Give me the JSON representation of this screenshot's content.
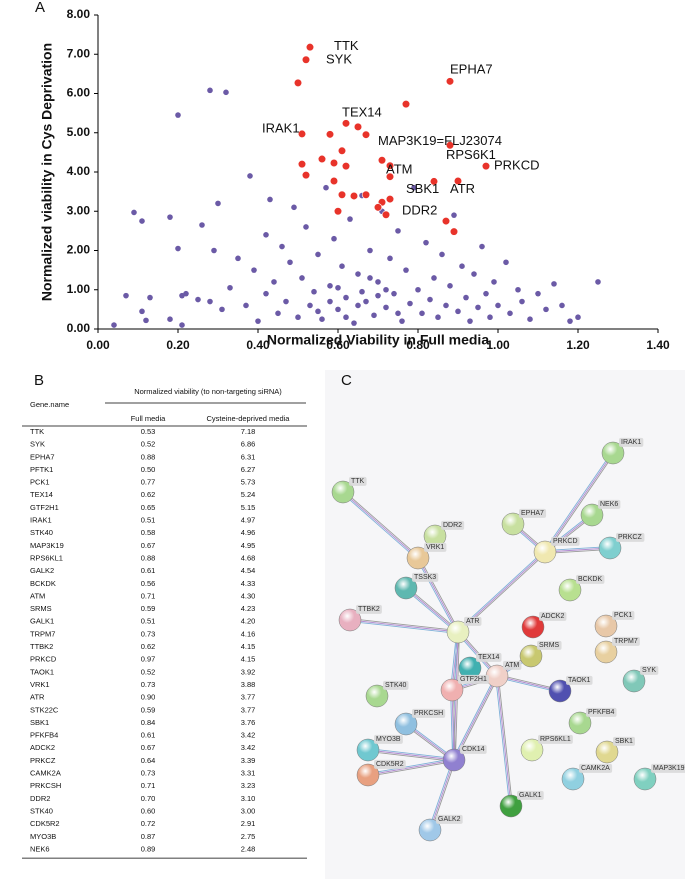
{
  "panels": [
    "A",
    "B",
    "C"
  ],
  "chart_data": {
    "type": "scatter",
    "xlabel": "Normalized Viability in Full media",
    "ylabel": "Normalized viability in Cys Deprivation",
    "xlim": [
      0,
      1.4
    ],
    "ylim": [
      0,
      8
    ],
    "xticks": [
      {
        "value": 0,
        "label": "0.00"
      },
      {
        "value": 0.2,
        "label": "0.20"
      },
      {
        "value": 0.4,
        "label": "0.40"
      },
      {
        "value": 0.6,
        "label": "0.60"
      },
      {
        "value": 0.8,
        "label": "0.80"
      },
      {
        "value": 1.0,
        "label": "1.00"
      },
      {
        "value": 1.2,
        "label": "1.20"
      },
      {
        "value": 1.4,
        "label": "1.40"
      }
    ],
    "yticks": [
      {
        "value": 0,
        "label": "0.00"
      },
      {
        "value": 1,
        "label": "1.00"
      },
      {
        "value": 2,
        "label": "2.00"
      },
      {
        "value": 3,
        "label": "3.00"
      },
      {
        "value": 4,
        "label": "4.00"
      },
      {
        "value": 5,
        "label": "5.00"
      },
      {
        "value": 6,
        "label": "6.00"
      },
      {
        "value": 7,
        "label": "7.00"
      },
      {
        "value": 8,
        "label": "8.00"
      }
    ],
    "series": [
      {
        "color": "#6b5aa6",
        "x": [
          0.28,
          0.32,
          0.2,
          0.04,
          0.07,
          0.09,
          0.11,
          0.11,
          0.12,
          0.13,
          0.18,
          0.18,
          0.2,
          0.21,
          0.21,
          0.22,
          0.25,
          0.26,
          0.28,
          0.29,
          0.3,
          0.31,
          0.33,
          0.35,
          0.37,
          0.38,
          0.39,
          0.4,
          0.42,
          0.42,
          0.43,
          0.44,
          0.45,
          0.46,
          0.47,
          0.48,
          0.49,
          0.5,
          0.51,
          0.52,
          0.53,
          0.54,
          0.55,
          0.56,
          0.57,
          0.58,
          0.59,
          0.6,
          0.61,
          0.62,
          0.63,
          0.64,
          0.65,
          0.66,
          0.67,
          0.68,
          0.69,
          0.7,
          0.71,
          0.72,
          0.73,
          0.74,
          0.75,
          0.76,
          0.77,
          0.78,
          0.79,
          0.8,
          0.81,
          0.82,
          0.83,
          0.84,
          0.85,
          0.86,
          0.87,
          0.88,
          0.89,
          0.9,
          0.91,
          0.92,
          0.93,
          0.94,
          0.95,
          0.96,
          0.97,
          0.98,
          0.99,
          1.0,
          1.02,
          1.03,
          1.05,
          1.06,
          1.08,
          1.1,
          1.12,
          1.14,
          1.16,
          1.18,
          1.2,
          1.25,
          0.55,
          0.6,
          0.65,
          0.7,
          0.75,
          0.58,
          0.68,
          0.62,
          0.72,
          0.66
        ],
        "values": [
          6.08,
          6.03,
          5.45,
          0.1,
          0.85,
          2.97,
          2.75,
          0.45,
          0.22,
          0.8,
          2.85,
          0.25,
          2.05,
          0.1,
          0.85,
          0.9,
          0.75,
          2.65,
          0.7,
          2.0,
          3.2,
          0.5,
          1.05,
          1.8,
          0.6,
          3.9,
          1.5,
          0.2,
          2.4,
          0.9,
          3.3,
          1.2,
          0.4,
          2.1,
          0.7,
          1.7,
          3.1,
          0.3,
          1.3,
          2.6,
          0.6,
          0.95,
          1.9,
          0.25,
          3.6,
          1.1,
          2.3,
          0.5,
          1.6,
          0.8,
          2.8,
          0.15,
          1.4,
          3.4,
          0.7,
          2.0,
          0.35,
          1.2,
          3.0,
          0.55,
          1.8,
          0.9,
          2.5,
          0.2,
          1.5,
          0.65,
          3.6,
          1.0,
          0.4,
          2.2,
          0.75,
          1.3,
          0.3,
          1.9,
          0.6,
          1.1,
          2.9,
          0.45,
          1.6,
          0.8,
          0.2,
          1.4,
          0.55,
          2.1,
          0.9,
          0.3,
          1.2,
          0.6,
          1.7,
          0.4,
          1.0,
          0.7,
          0.25,
          0.9,
          0.5,
          1.15,
          0.6,
          0.2,
          0.3,
          1.2,
          0.45,
          1.05,
          0.6,
          0.85,
          0.4,
          0.7,
          1.3,
          0.3,
          1.0,
          0.95
        ]
      },
      {
        "color": "#e8332a",
        "x": [
          0.53,
          0.52,
          0.88,
          0.5,
          0.77,
          0.62,
          0.65,
          0.51,
          0.58,
          0.67,
          0.88,
          0.61,
          0.56,
          0.71,
          0.59,
          0.51,
          0.73,
          0.62,
          0.97,
          0.52,
          0.73,
          0.9,
          0.59,
          0.84,
          0.61,
          0.67,
          0.64,
          0.73,
          0.71,
          0.7,
          0.6,
          0.72,
          0.87,
          0.89
        ],
        "values": [
          7.18,
          6.86,
          6.31,
          6.27,
          5.73,
          5.24,
          5.15,
          4.97,
          4.96,
          4.95,
          4.68,
          4.54,
          4.33,
          4.3,
          4.23,
          4.2,
          4.16,
          4.15,
          4.15,
          3.92,
          3.88,
          3.77,
          3.77,
          3.76,
          3.42,
          3.42,
          3.39,
          3.31,
          3.23,
          3.1,
          3.0,
          2.91,
          2.75,
          2.48
        ]
      }
    ],
    "annotations": [
      {
        "text": "TTK",
        "x": 0.59,
        "y": 7.2
      },
      {
        "text": "SYK",
        "x": 0.57,
        "y": 6.85
      },
      {
        "text": "EPHA7",
        "x": 0.88,
        "y": 6.6
      },
      {
        "text": "TEX14",
        "x": 0.61,
        "y": 5.5
      },
      {
        "text": "IRAK1",
        "x": 0.41,
        "y": 5.1
      },
      {
        "text": "MAP3K19=FLJ23074",
        "x": 0.7,
        "y": 4.78
      },
      {
        "text": "RPS6K1",
        "x": 0.87,
        "y": 4.42
      },
      {
        "text": "PRKCD",
        "x": 0.99,
        "y": 4.15
      },
      {
        "text": "ATM",
        "x": 0.72,
        "y": 4.05
      },
      {
        "text": "SBK1",
        "x": 0.77,
        "y": 3.55
      },
      {
        "text": "ATR",
        "x": 0.88,
        "y": 3.55
      },
      {
        "text": "DDR2",
        "x": 0.76,
        "y": 3.0
      }
    ]
  },
  "table": {
    "group_header": "Normalized viability (to non-targeting siRNA)",
    "columns": [
      "Gene.name",
      "Full media",
      "Cysteine-deprived media"
    ],
    "rows": [
      [
        "TTK",
        "0.53",
        "7.18"
      ],
      [
        "SYK",
        "0.52",
        "6.86"
      ],
      [
        "EPHA7",
        "0.88",
        "6.31"
      ],
      [
        "PFTK1",
        "0.50",
        "6.27"
      ],
      [
        "PCK1",
        "0.77",
        "5.73"
      ],
      [
        "TEX14",
        "0.62",
        "5.24"
      ],
      [
        "GTF2H1",
        "0.65",
        "5.15"
      ],
      [
        "IRAK1",
        "0.51",
        "4.97"
      ],
      [
        "STK40",
        "0.58",
        "4.96"
      ],
      [
        "MAP3K19",
        "0.67",
        "4.95"
      ],
      [
        "RPS6KL1",
        "0.88",
        "4.68"
      ],
      [
        "GALK2",
        "0.61",
        "4.54"
      ],
      [
        "BCKDK",
        "0.56",
        "4.33"
      ],
      [
        "ATM",
        "0.71",
        "4.30"
      ],
      [
        "SRMS",
        "0.59",
        "4.23"
      ],
      [
        "GALK1",
        "0.51",
        "4.20"
      ],
      [
        "TRPM7",
        "0.73",
        "4.16"
      ],
      [
        "TTBK2",
        "0.62",
        "4.15"
      ],
      [
        "PRKCD",
        "0.97",
        "4.15"
      ],
      [
        "TAOK1",
        "0.52",
        "3.92"
      ],
      [
        "VRK1",
        "0.73",
        "3.88"
      ],
      [
        "ATR",
        "0.90",
        "3.77"
      ],
      [
        "STK22C",
        "0.59",
        "3.77"
      ],
      [
        "SBK1",
        "0.84",
        "3.76"
      ],
      [
        "PFKFB4",
        "0.61",
        "3.42"
      ],
      [
        "ADCK2",
        "0.67",
        "3.42"
      ],
      [
        "PRKCZ",
        "0.64",
        "3.39"
      ],
      [
        "CAMK2A",
        "0.73",
        "3.31"
      ],
      [
        "PRKCSH",
        "0.71",
        "3.23"
      ],
      [
        "DDR2",
        "0.70",
        "3.10"
      ],
      [
        "STK40",
        "0.60",
        "3.00"
      ],
      [
        "CDK5R2",
        "0.72",
        "2.91"
      ],
      [
        "MYO3B",
        "0.87",
        "2.75"
      ],
      [
        "NEK6",
        "0.89",
        "2.48"
      ]
    ]
  },
  "network": {
    "nodes": [
      "IRAK1",
      "TTK",
      "NEK6",
      "PRKCZ",
      "DDR2",
      "EPHA7",
      "VRK1",
      "PRKCD",
      "TSSK3",
      "BCKDK",
      "TTBK2",
      "ADCK2",
      "PCK1",
      "ATR",
      "TRPM7",
      "SRMS",
      "TEX14",
      "ATM",
      "SYK",
      "STK40",
      "GTF2H1",
      "TAOK1",
      "PFKFB4",
      "PRKCSH",
      "MYO3B",
      "RPS6KL1",
      "SBK1",
      "CDK14",
      "CAMK2A",
      "MAP3K19",
      "CDK5R2",
      "GALK1",
      "GALK2"
    ]
  }
}
